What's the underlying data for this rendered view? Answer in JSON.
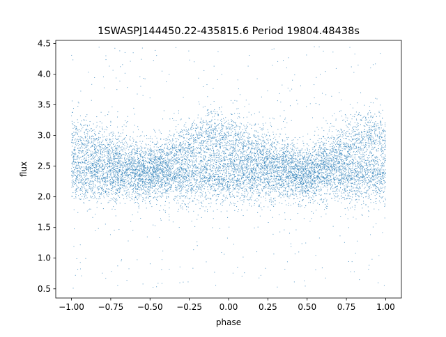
{
  "chart_data": {
    "type": "scatter",
    "title": "1SWASPJ144450.22-435815.6 Period 19804.48438s",
    "xlabel": "phase",
    "ylabel": "flux",
    "xlim": [
      -1.1,
      1.1
    ],
    "ylim": [
      0.35,
      4.55
    ],
    "x_ticks": [
      -1.0,
      -0.75,
      -0.5,
      -0.25,
      0.0,
      0.25,
      0.5,
      0.75,
      1.0
    ],
    "x_tick_labels": [
      "−1.00",
      "−0.75",
      "−0.50",
      "−0.25",
      "0.00",
      "0.25",
      "0.50",
      "0.75",
      "1.00"
    ],
    "y_ticks": [
      0.5,
      1.0,
      1.5,
      2.0,
      2.5,
      3.0,
      3.5,
      4.0,
      4.5
    ],
    "y_tick_labels": [
      "0.5",
      "1.0",
      "1.5",
      "2.0",
      "2.5",
      "3.0",
      "3.5",
      "4.0",
      "4.5"
    ],
    "grid": false,
    "legend": "none",
    "series": [
      {
        "color": "#1f77b4",
        "x_range": [
          -1.0,
          1.0
        ],
        "main_band": {
          "center": 2.35,
          "spread": 0.22
        },
        "upper_branch_centers": [
          {
            "x": -1.0,
            "y": 2.95
          },
          {
            "x": -0.75,
            "y": 2.75
          },
          {
            "x": -0.5,
            "y": 2.45
          },
          {
            "x": -0.25,
            "y": 2.85
          },
          {
            "x": -0.1,
            "y": 3.02
          },
          {
            "x": 0.0,
            "y": 2.95
          },
          {
            "x": 0.25,
            "y": 2.7
          },
          {
            "x": 0.5,
            "y": 2.4
          },
          {
            "x": 0.75,
            "y": 2.85
          },
          {
            "x": 0.9,
            "y": 3.02
          },
          {
            "x": 1.0,
            "y": 2.95
          }
        ],
        "upper_branch_spread": 0.22,
        "outlier_range": [
          0.5,
          4.45
        ]
      }
    ]
  }
}
